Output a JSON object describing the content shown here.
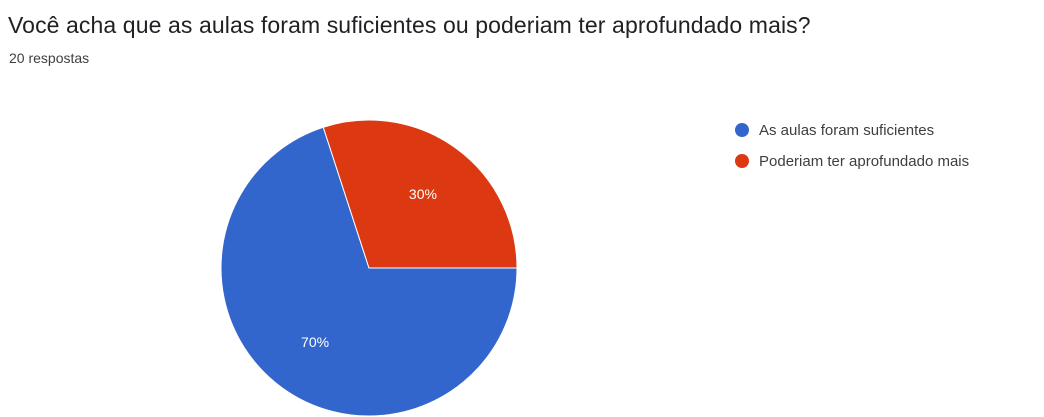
{
  "header": {
    "title": "Você acha que as aulas foram suficientes ou poderiam ter aprofundado mais?",
    "subtitle": "20 respostas"
  },
  "chart_data": {
    "type": "pie",
    "title": "Você acha que as aulas foram suficientes ou poderiam ter aprofundado mais?",
    "subtitle": "20 respostas",
    "categories": [
      "As aulas foram suficientes",
      "Poderiam ter aprofundado mais"
    ],
    "values": [
      70,
      30
    ],
    "labels": [
      "70%",
      "30%"
    ],
    "colors": [
      "#3366cc",
      "#dc3912"
    ],
    "legend_position": "right"
  },
  "legend": {
    "items": [
      {
        "label": "As aulas foram suficientes",
        "color": "#3366cc"
      },
      {
        "label": "Poderiam ter aprofundado mais",
        "color": "#dc3912"
      }
    ]
  }
}
